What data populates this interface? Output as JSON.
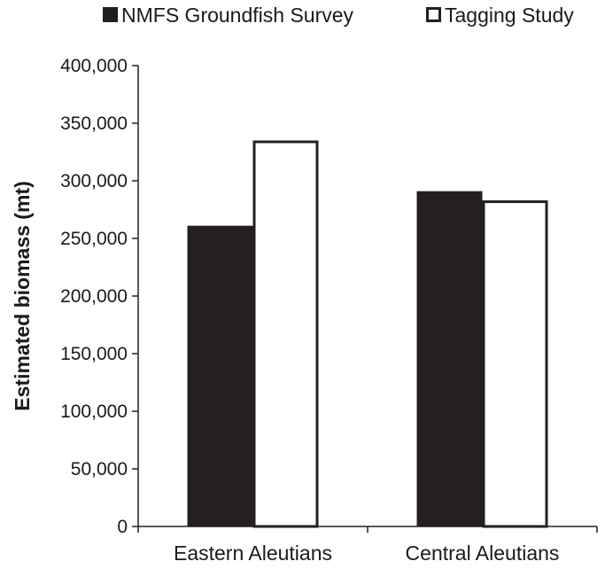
{
  "chart_data": {
    "type": "bar",
    "title": "",
    "xlabel": "",
    "ylabel": "Estimated biomass (mt)",
    "categories": [
      "Eastern Aleutians",
      "Central Aleutians"
    ],
    "series": [
      {
        "name": "NMFS Groundfish Survey",
        "values": [
          261000,
          291000
        ],
        "color": "#231f20",
        "fill": "solid"
      },
      {
        "name": "Tagging Study",
        "values": [
          335000,
          283000
        ],
        "color": "#231f20",
        "fill": "hollow"
      }
    ],
    "ylim": [
      0,
      400000
    ],
    "yticks": [
      0,
      50000,
      100000,
      150000,
      200000,
      250000,
      300000,
      350000,
      400000
    ],
    "ytick_labels": [
      "0",
      "50,000",
      "100,000",
      "150,000",
      "200,000",
      "250,000",
      "300,000",
      "350,000",
      "400,000"
    ],
    "grid": false,
    "legend_position": "top"
  }
}
